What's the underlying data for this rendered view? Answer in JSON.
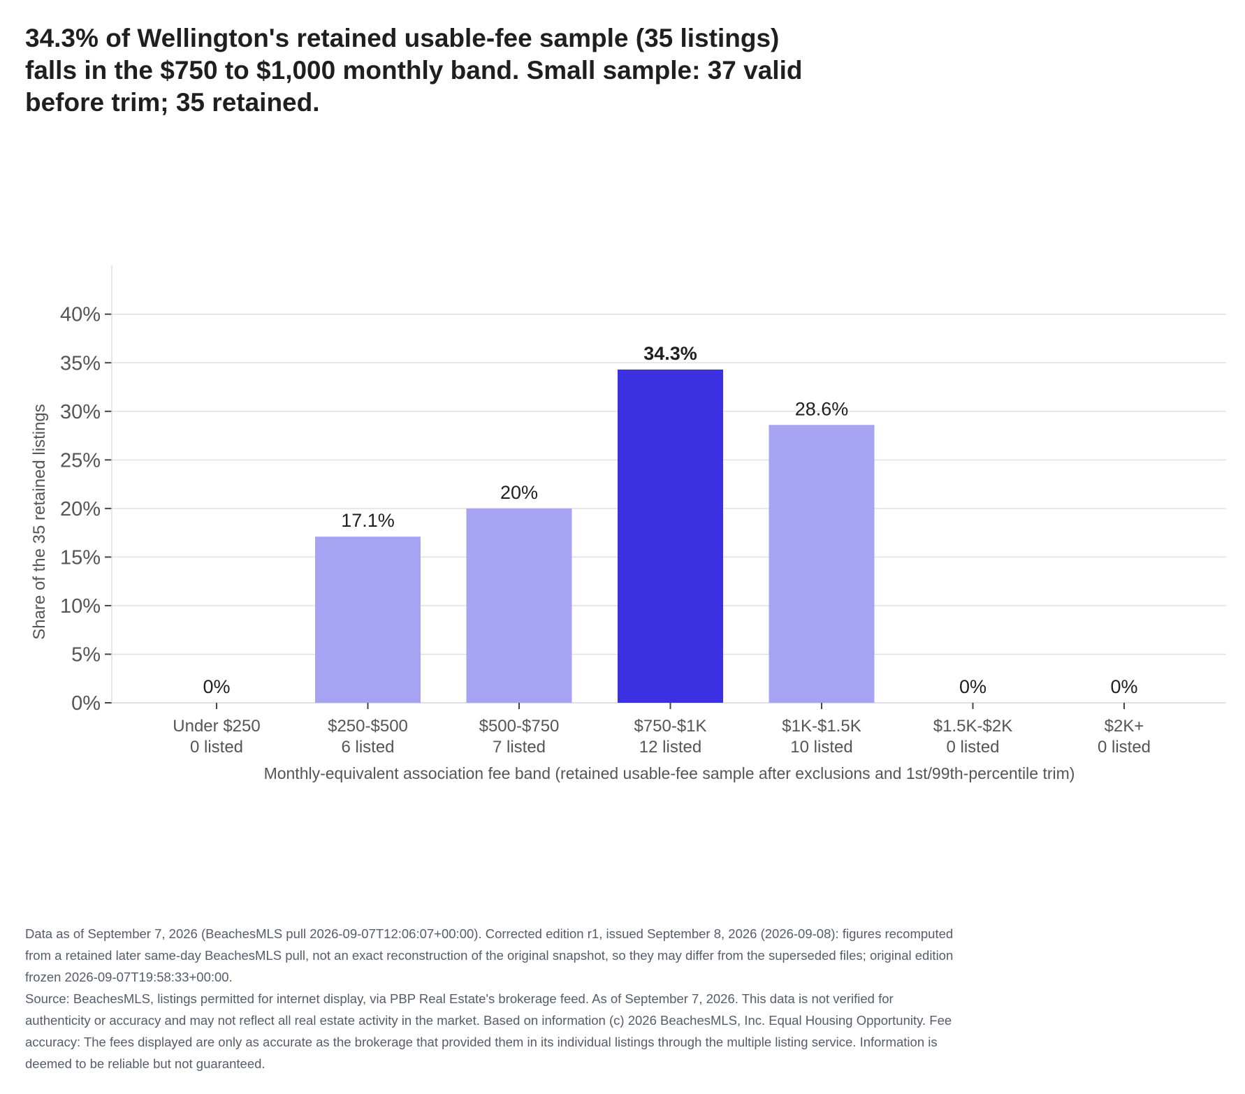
{
  "title_lines": [
    "34.3% of Wellington's retained usable-fee sample (35 listings)",
    "falls in the $750 to $1,000 monthly band. Small sample: 37 valid",
    "before trim; 35 retained."
  ],
  "colors": {
    "bar": "#a6a3f3",
    "highlight": "#3b31e2",
    "grid": "#dfdfee",
    "axis_text": "#555555"
  },
  "chart_data": {
    "type": "bar",
    "categories": [
      "Under $250",
      "$250-$500",
      "$500-$750",
      "$750-$1K",
      "$1K-$1.5K",
      "$1.5K-$2K",
      "$2K+"
    ],
    "counts": [
      "0 listed",
      "6 listed",
      "7 listed",
      "12 listed",
      "10 listed",
      "0 listed",
      "0 listed"
    ],
    "values": [
      0,
      17.1,
      20,
      34.3,
      28.6,
      0,
      0
    ],
    "value_labels": [
      "0%",
      "17.1%",
      "20%",
      "34.3%",
      "28.6%",
      "0%",
      "0%"
    ],
    "highlight_index": 3,
    "ylim": [
      0,
      43
    ],
    "yticks": [
      0,
      5,
      10,
      15,
      20,
      25,
      30,
      35,
      40
    ],
    "ytick_labels": [
      "0%",
      "5%",
      "10%",
      "15%",
      "20%",
      "25%",
      "30%",
      "35%",
      "40%"
    ],
    "ylabel": "Share of the 35 retained listings",
    "xlabel": "Monthly-equivalent association fee band (retained usable-fee sample after exclusions and 1st/99th-percentile trim)",
    "grid": true,
    "legend": "none"
  },
  "footer": {
    "note": "Data as of September 7, 2026 (BeachesMLS pull 2026-09-07T12:06:07+00:00). Corrected edition r1, issued September 8, 2026 (2026-09-08): figures recomputed from a retained later same-day BeachesMLS pull, not an exact reconstruction of the original snapshot, so they may differ from the superseded files; original edition frozen 2026-09-07T19:58:33+00:00.",
    "source": "Source: BeachesMLS, listings permitted for internet display, via PBP Real Estate's brokerage feed. As of September 7, 2026. This data is not verified for authenticity or accuracy and may not reflect all real estate activity in the market. Based on information (c) 2026 BeachesMLS, Inc. Equal Housing Opportunity. Fee accuracy: The fees displayed are only as accurate as the brokerage that provided them in its individual listings through the multiple listing service. Information is deemed to be reliable but not guaranteed."
  }
}
